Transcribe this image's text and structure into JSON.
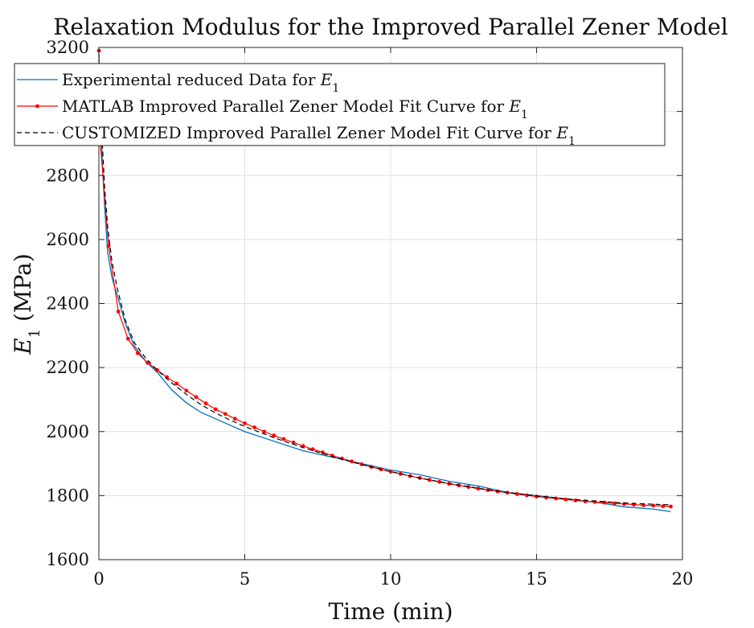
{
  "chart_data": {
    "type": "line",
    "title": "Relaxation Modulus for the Improved Parallel Zener Model",
    "xlabel": "Time (min)",
    "ylabel": "E1 (MPa)",
    "xlim": [
      0,
      20
    ],
    "ylim": [
      1600,
      3200
    ],
    "xticks": [
      0,
      5,
      10,
      15,
      20
    ],
    "yticks": [
      1600,
      1800,
      2000,
      2200,
      2400,
      2600,
      2800,
      3000,
      3200
    ],
    "grid": true,
    "legend_position": "top-left",
    "series": [
      {
        "name": "Experimental reduced Data for E1",
        "color": "#0072BD",
        "style": "solid",
        "x": [
          0,
          0.05,
          0.1,
          0.15,
          0.2,
          0.3,
          0.45,
          0.65,
          0.9,
          1.2,
          1.6,
          2.0,
          2.5,
          3.0,
          3.5,
          4.0,
          4.5,
          5.0,
          6.0,
          7.0,
          8.0,
          9.0,
          10.0,
          11.0,
          12.0,
          13.0,
          14.0,
          15.0,
          16.0,
          17.0,
          18.0,
          19.0,
          19.6
        ],
        "y": [
          3180,
          3000,
          2880,
          2780,
          2700,
          2560,
          2480,
          2420,
          2340,
          2270,
          2220,
          2185,
          2130,
          2090,
          2060,
          2040,
          2020,
          2000,
          1970,
          1940,
          1920,
          1900,
          1880,
          1865,
          1845,
          1830,
          1810,
          1800,
          1790,
          1780,
          1765,
          1758,
          1750
        ]
      },
      {
        "name": "MATLAB Improved Parallel Zener Model Fit Curve for E1",
        "color": "#FF0000",
        "style": "solid-dots",
        "x": [
          0,
          0.033,
          0.333,
          0.667,
          1.0,
          1.333,
          1.667,
          2.0,
          2.333,
          2.667,
          3.0,
          3.333,
          3.667,
          4.0,
          4.333,
          4.667,
          5.0,
          5.333,
          5.667,
          6.0,
          6.333,
          6.667,
          7.0,
          7.333,
          7.667,
          8.0,
          8.333,
          8.667,
          9.0,
          9.333,
          9.667,
          10.0,
          10.333,
          10.667,
          11.0,
          11.333,
          11.667,
          12.0,
          12.333,
          12.667,
          13.0,
          13.333,
          13.667,
          14.0,
          14.333,
          14.667,
          15.0,
          15.333,
          15.667,
          16.0,
          16.333,
          16.667,
          17.0,
          17.333,
          17.667,
          18.0,
          18.333,
          18.667,
          19.0,
          19.333,
          19.6
        ],
        "y": [
          3190,
          2920,
          2580,
          2375,
          2290,
          2245,
          2215,
          2192,
          2170,
          2150,
          2128,
          2108,
          2088,
          2070,
          2055,
          2040,
          2026,
          2013,
          2000,
          1988,
          1977,
          1966,
          1955,
          1945,
          1935,
          1925,
          1916,
          1907,
          1898,
          1890,
          1882,
          1875,
          1868,
          1861,
          1855,
          1849,
          1843,
          1837,
          1832,
          1827,
          1822,
          1817,
          1813,
          1809,
          1805,
          1801,
          1797,
          1794,
          1791,
          1788,
          1785,
          1782,
          1780,
          1778,
          1776,
          1774,
          1772,
          1770,
          1769,
          1767,
          1766
        ]
      },
      {
        "name": "CUSTOMIZED Improved Parallel Zener Model Fit Curve for E1",
        "color": "#000000",
        "style": "dashed",
        "x": [
          0,
          0.1,
          0.2,
          0.3,
          0.45,
          0.65,
          0.9,
          1.2,
          1.6,
          2.0,
          2.5,
          3.0,
          3.5,
          4.0,
          4.5,
          5.0,
          6.0,
          7.0,
          8.0,
          9.0,
          10.0,
          11.0,
          12.0,
          13.0,
          14.0,
          15.0,
          16.0,
          17.0,
          18.0,
          19.0,
          19.6
        ],
        "y": [
          3050,
          2930,
          2760,
          2640,
          2530,
          2440,
          2350,
          2280,
          2230,
          2192,
          2152,
          2116,
          2084,
          2058,
          2036,
          2016,
          1981,
          1950,
          1922,
          1897,
          1875,
          1855,
          1838,
          1823,
          1810,
          1799,
          1790,
          1783,
          1777,
          1773,
          1771
        ]
      }
    ]
  }
}
